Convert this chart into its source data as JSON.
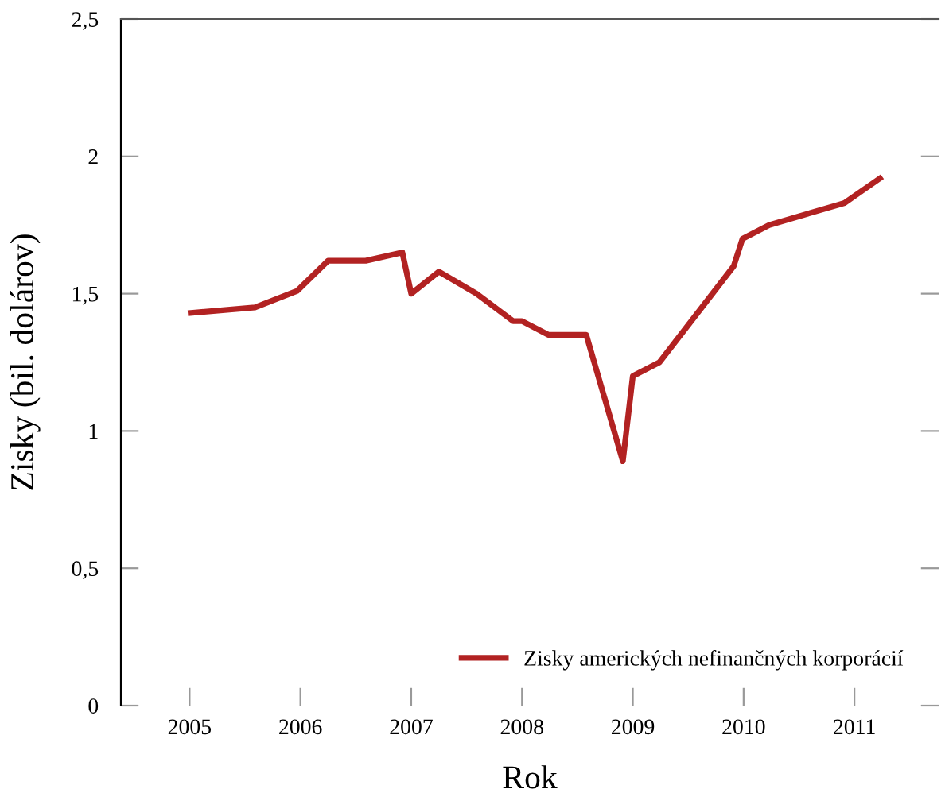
{
  "chart_data": {
    "type": "line",
    "xlabel": "Rok",
    "ylabel": "Zisky (bil. dolárov)",
    "xlim": [
      2004.38,
      2011.76
    ],
    "xticks": [
      2005,
      2006,
      2007,
      2008,
      2009,
      2010,
      2011
    ],
    "ylim": [
      0,
      2.5
    ],
    "yticks": [
      {
        "value": 0,
        "label": "0"
      },
      {
        "value": 0.5,
        "label": "0,5"
      },
      {
        "value": 1,
        "label": "1"
      },
      {
        "value": 1.5,
        "label": "1,5"
      },
      {
        "value": 2,
        "label": "2"
      },
      {
        "value": 2.5,
        "label": "2,5"
      }
    ],
    "grid": false,
    "legend": "bottom right",
    "marker": "none",
    "line_style": "solid",
    "series": [
      {
        "name": "Zisky amerických nefinančných korporácií",
        "color": "#b22222",
        "x": [
          2005.01,
          2005.59,
          2005.97,
          2006.25,
          2006.59,
          2006.92,
          2007.0,
          2007.25,
          2007.59,
          2007.92,
          2008.0,
          2008.24,
          2008.58,
          2008.91,
          2009.0,
          2009.24,
          2009.91,
          2009.99,
          2010.23,
          2010.91,
          2011.23
        ],
        "values": [
          1.43,
          1.45,
          1.51,
          1.62,
          1.62,
          1.65,
          1.5,
          1.58,
          1.5,
          1.4,
          1.4,
          1.35,
          1.35,
          0.89,
          1.2,
          1.25,
          1.6,
          1.7,
          1.75,
          1.83,
          1.92
        ]
      }
    ]
  }
}
